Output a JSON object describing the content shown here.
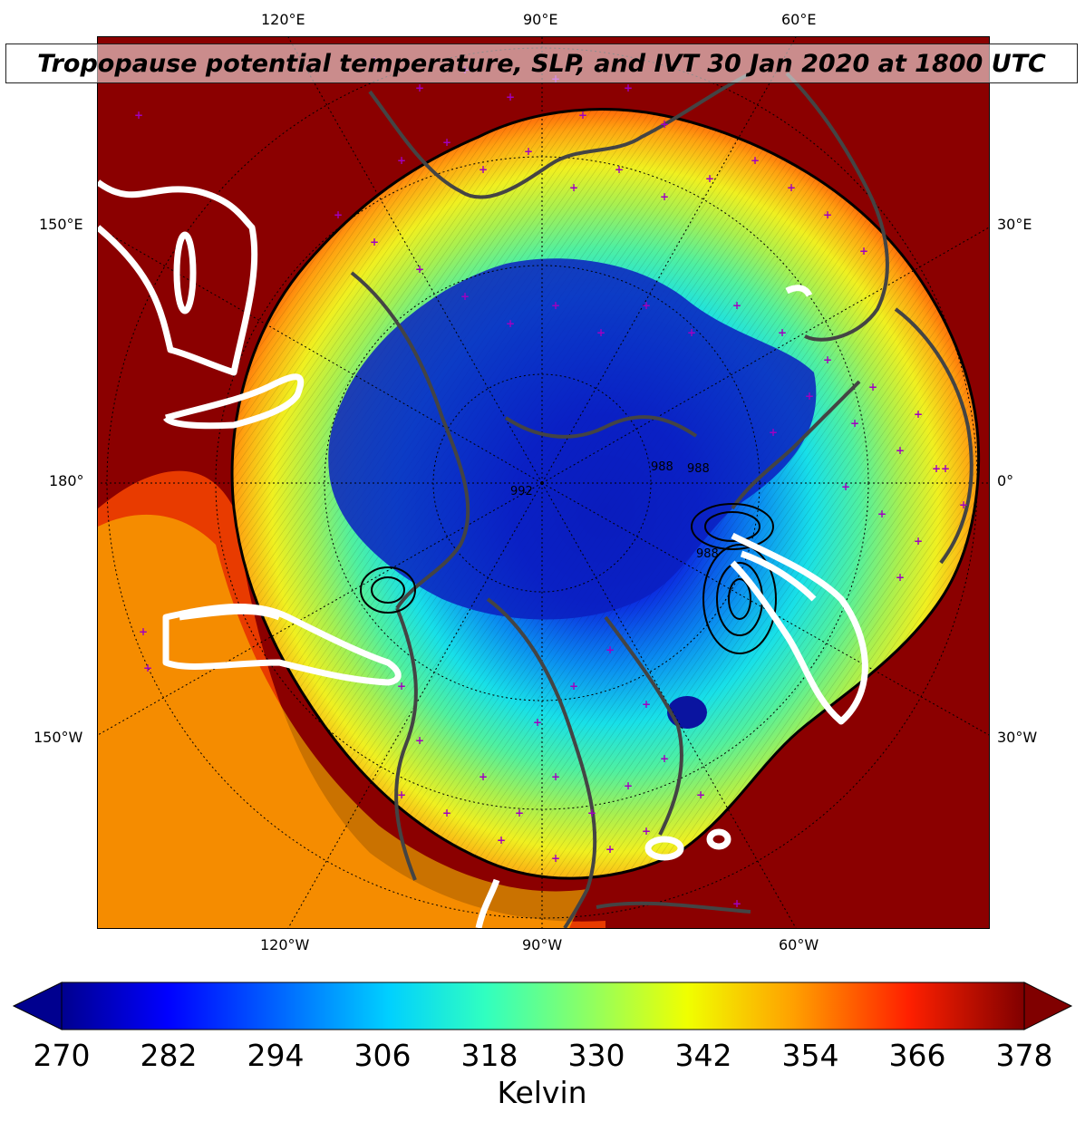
{
  "title": "Tropopause potential temperature, SLP, and IVT 30 Jan 2020 at 1800 UTC",
  "map": {
    "projection": "north-polar-stereographic",
    "lon_labels_top": [
      "120°E",
      "90°E",
      "60°E"
    ],
    "lon_labels_bottom": [
      "120°W",
      "90°W",
      "60°W"
    ],
    "lat_labels_left": [
      "150°E",
      "180°",
      "150°W"
    ],
    "lat_labels_right": [
      "30°E",
      "0°",
      "30°W"
    ],
    "slp_contour_labels": [
      "992",
      "988",
      "988",
      "988"
    ],
    "colors": {
      "ocean_far": "#8b0000",
      "polar_core": "#0a1fc4",
      "land_outline": "#444444",
      "ivt_contour": "#ffffff",
      "station_marker": "#a000c0"
    }
  },
  "colorbar": {
    "cmap": "jet",
    "range": [
      270,
      378
    ],
    "ticks": [
      "270",
      "282",
      "294",
      "306",
      "318",
      "330",
      "342",
      "354",
      "366",
      "378"
    ],
    "label": "Kelvin",
    "extend": "both"
  }
}
